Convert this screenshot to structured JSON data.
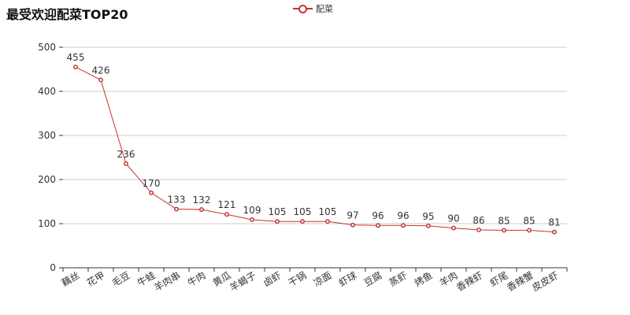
{
  "title": "最受欢迎配菜TOP20",
  "legend": {
    "label": "配菜"
  },
  "colors": {
    "series": "#c23531",
    "grid": "#cccccc",
    "axis": "#333333",
    "text": "#333333"
  },
  "chart_data": {
    "type": "line",
    "title": "最受欢迎配菜TOP20",
    "xlabel": "",
    "ylabel": "",
    "ylim": [
      0,
      500
    ],
    "yticks": [
      0,
      100,
      200,
      300,
      400,
      500
    ],
    "grid": "horizontal",
    "legend_position": "top-center",
    "categories": [
      "藕丝",
      "花甲",
      "毛豆",
      "牛蛙",
      "羊肉串",
      "牛肉",
      "黄瓜",
      "羊蝎子",
      "卤虾",
      "干锅",
      "凉面",
      "虾球",
      "豆腐",
      "蒸虾",
      "烤鱼",
      "羊肉",
      "香辣虾",
      "虾尾",
      "香辣蟹",
      "皮皮虾"
    ],
    "series": [
      {
        "name": "配菜",
        "values": [
          455,
          426,
          236,
          170,
          133,
          132,
          121,
          109,
          105,
          105,
          105,
          97,
          96,
          96,
          95,
          90,
          86,
          85,
          85,
          81
        ]
      }
    ]
  }
}
